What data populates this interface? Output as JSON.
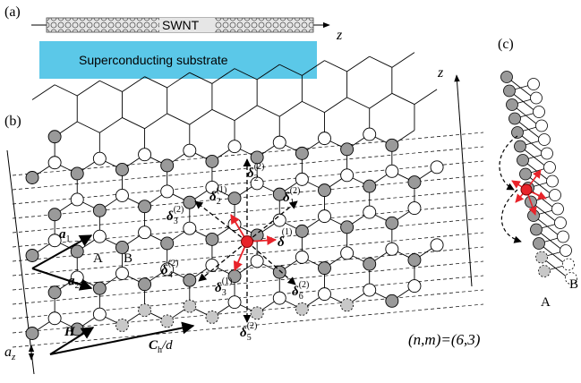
{
  "panel_labels": {
    "a": "(a)",
    "b": "(b)",
    "c": "(c)"
  },
  "panel_a": {
    "tube_label": "SWNT",
    "axis_label": "z",
    "substrate_label": "Superconducting substrate",
    "substrate_color": "#5bc8e8"
  },
  "panel_b": {
    "axis_label": "z",
    "vectors": {
      "a1": {
        "base": "a",
        "sub": "1"
      },
      "a2": {
        "base": "a",
        "sub": "2"
      },
      "H": {
        "base": "H",
        "sub": ""
      },
      "Ch": {
        "base": "C",
        "sub": "h",
        "tail": "/d"
      },
      "az": {
        "base": "a",
        "sub": "z"
      }
    },
    "site_labels": [
      "A",
      "B"
    ],
    "deltas_first": [
      {
        "base": "δ",
        "sub": "2",
        "sup": "(1)"
      },
      {
        "base": "δ",
        "sub": "",
        "sup": "(1)"
      },
      {
        "base": "δ",
        "sub": "3",
        "sup": "(1)"
      }
    ],
    "deltas_second": [
      {
        "base": "δ",
        "sub": "2",
        "sup": "(2)"
      },
      {
        "base": "δ",
        "sub": "1",
        "sup": "(2)"
      },
      {
        "base": "δ",
        "sub": "3",
        "sup": "(2)"
      },
      {
        "base": "δ",
        "sub": "4",
        "sup": "(2)"
      },
      {
        "base": "δ",
        "sub": "5",
        "sup": "(2)"
      },
      {
        "base": "δ",
        "sub": "6",
        "sup": "(2)"
      }
    ],
    "chirality": "(n,m)=(6,3)"
  },
  "panel_c": {
    "site_labels": [
      "A",
      "B"
    ]
  },
  "colors": {
    "highlight": "#e8232a",
    "atom_fill": "#9a9a9a",
    "ghost_fill": "#c8c8c8"
  }
}
